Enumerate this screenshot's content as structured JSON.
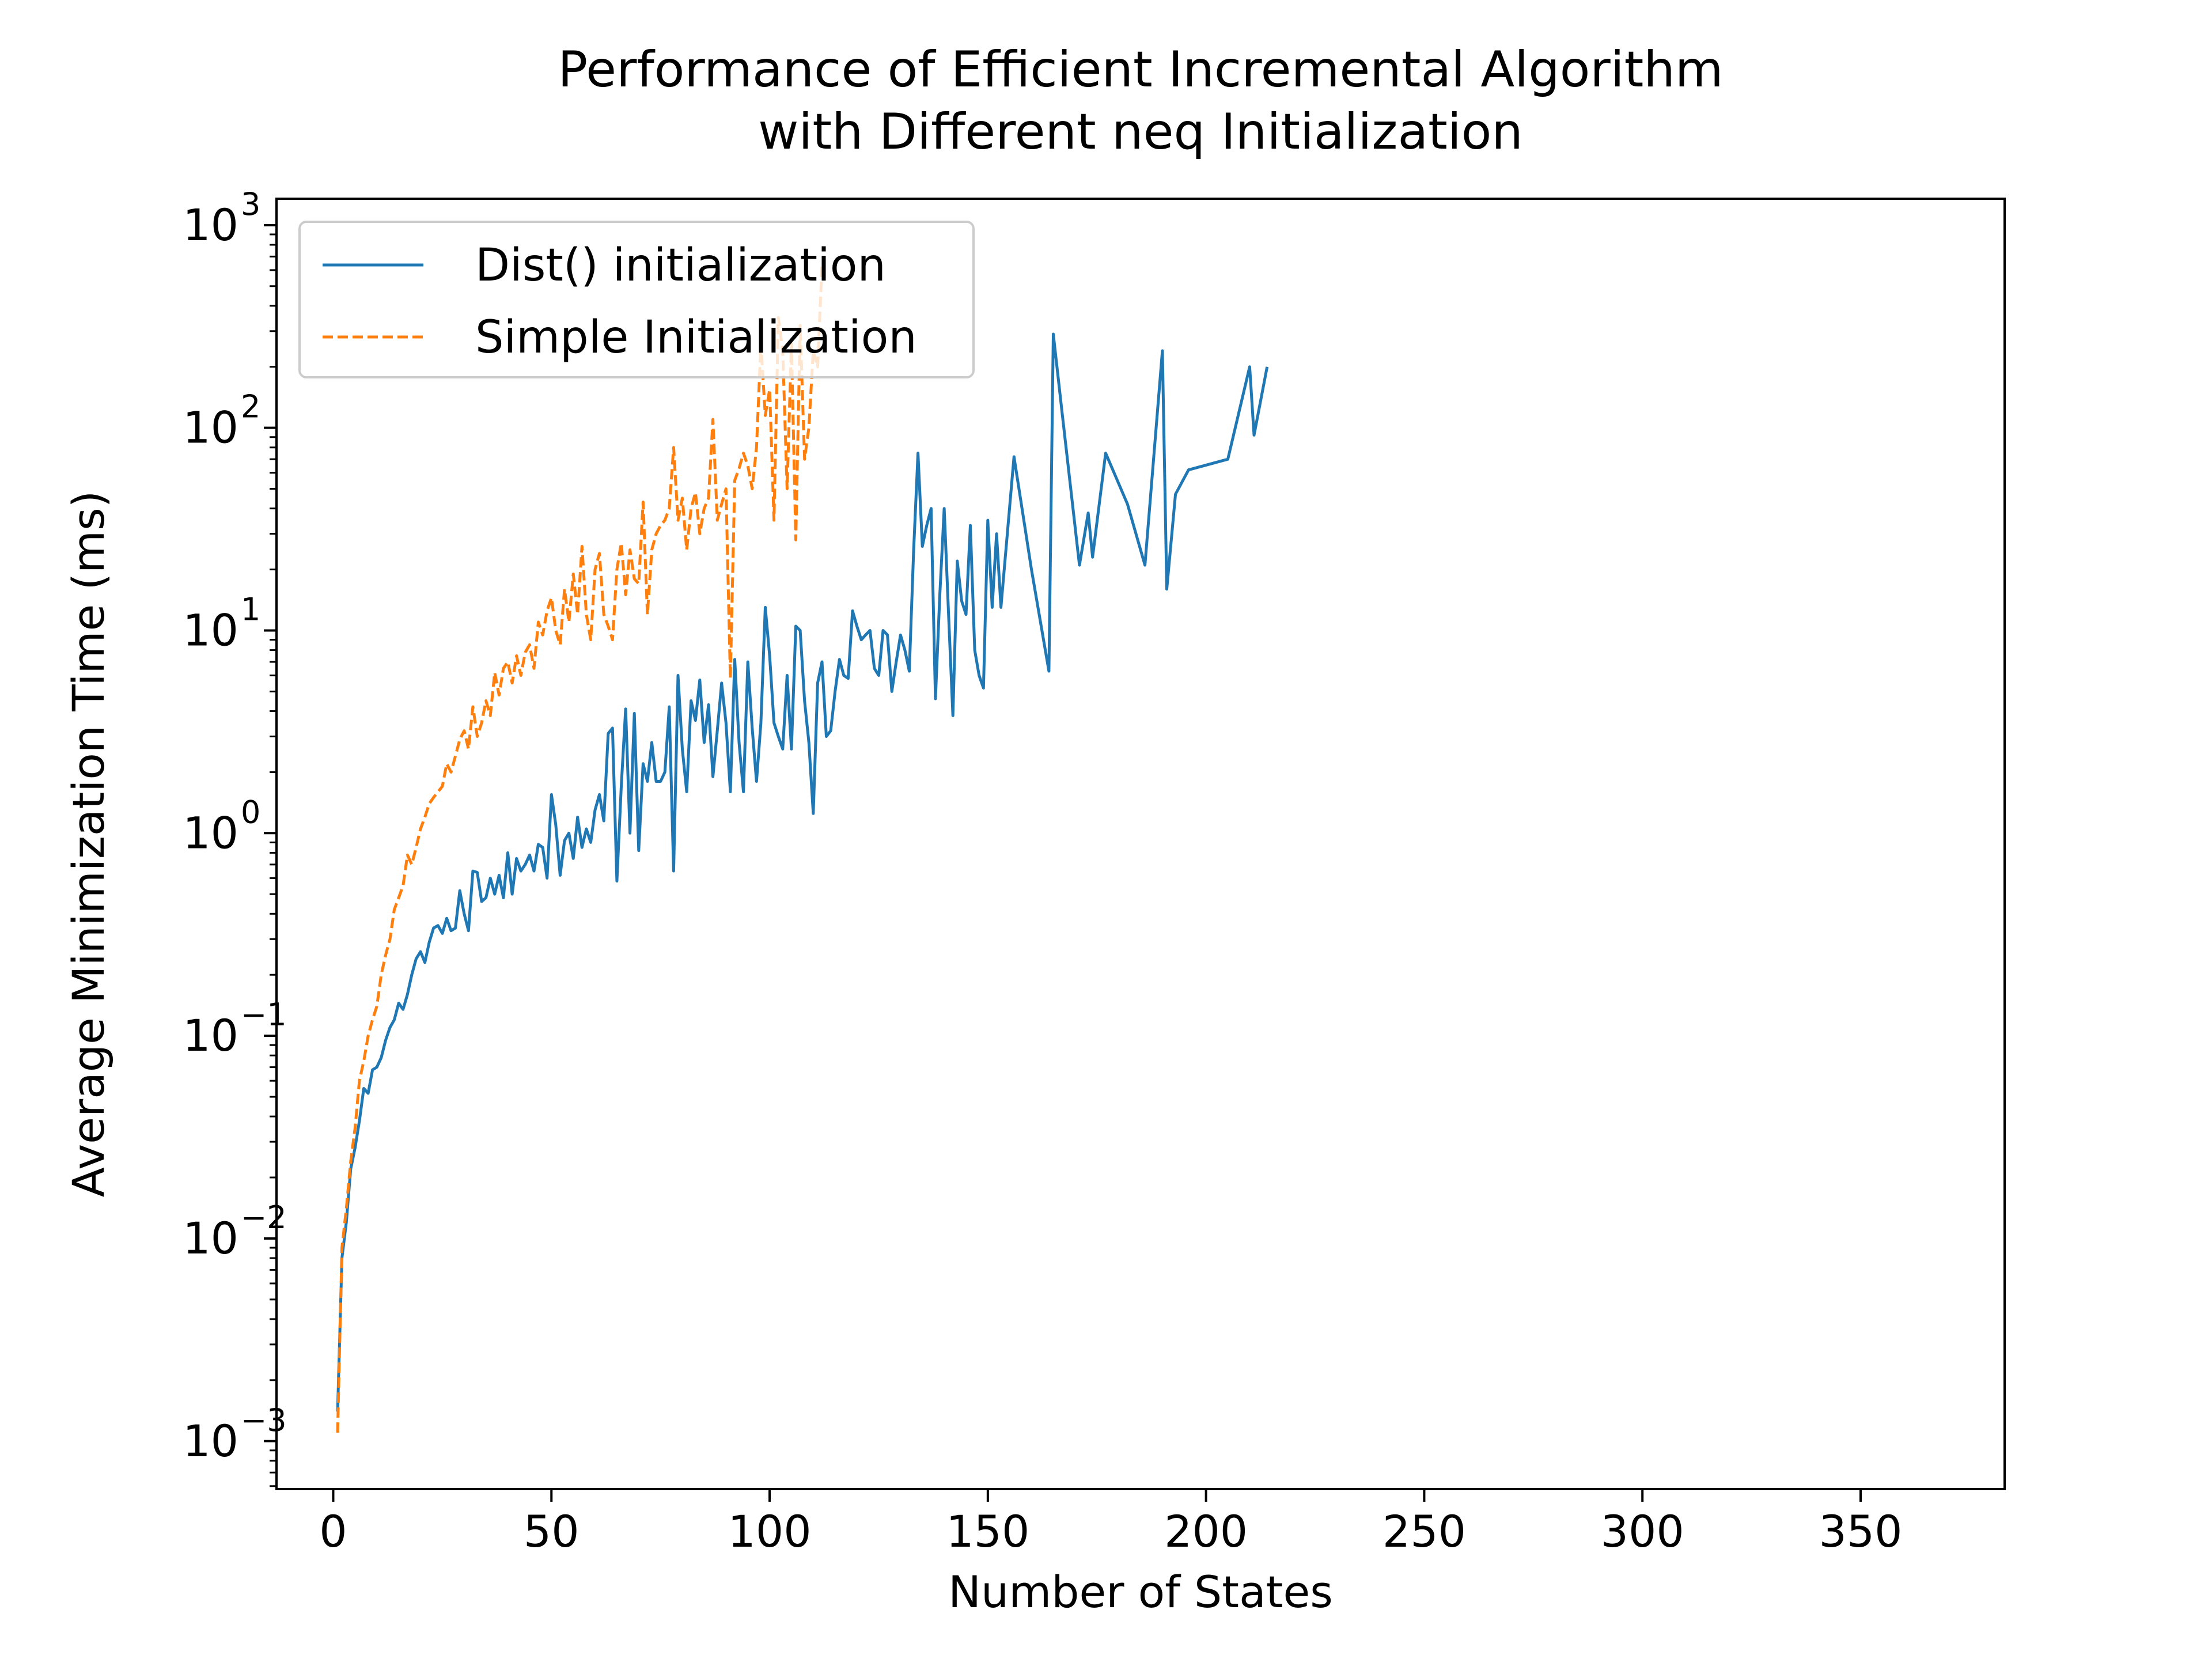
{
  "chart_data": {
    "type": "line",
    "title": [
      "Performance of Efficient Incremental Algorithm",
      "with Different neq Initialization"
    ],
    "xlabel": "Number of States",
    "ylabel": "Average Minimization Time (ms)",
    "xlim": [
      -13,
      383
    ],
    "xticks": [
      0,
      50,
      100,
      150,
      200,
      250,
      300,
      350
    ],
    "yscale": "log",
    "ylim": [
      0.00058,
      1350
    ],
    "yticks": [
      {
        "value": 0.001,
        "base": "10",
        "exp": "−3"
      },
      {
        "value": 0.01,
        "base": "10",
        "exp": "−2"
      },
      {
        "value": 0.1,
        "base": "10",
        "exp": "−1"
      },
      {
        "value": 1,
        "base": "10",
        "exp": "0"
      },
      {
        "value": 10,
        "base": "10",
        "exp": "1"
      },
      {
        "value": 100,
        "base": "10",
        "exp": "2"
      },
      {
        "value": 1000,
        "base": "10",
        "exp": "3"
      }
    ],
    "legend": {
      "position": "top-left"
    },
    "series": [
      {
        "name": "Dist() initialization",
        "color": "#1f77b4",
        "style": "solid",
        "points": [
          [
            1,
            0.0014
          ],
          [
            2,
            0.008
          ],
          [
            3,
            0.012
          ],
          [
            4,
            0.022
          ],
          [
            5,
            0.028
          ],
          [
            6,
            0.038
          ],
          [
            7,
            0.055
          ],
          [
            8,
            0.052
          ],
          [
            9,
            0.068
          ],
          [
            10,
            0.07
          ],
          [
            11,
            0.078
          ],
          [
            12,
            0.095
          ],
          [
            13,
            0.11
          ],
          [
            14,
            0.12
          ],
          [
            15,
            0.145
          ],
          [
            16,
            0.135
          ],
          [
            17,
            0.16
          ],
          [
            18,
            0.2
          ],
          [
            19,
            0.24
          ],
          [
            20,
            0.26
          ],
          [
            21,
            0.23
          ],
          [
            22,
            0.29
          ],
          [
            23,
            0.34
          ],
          [
            24,
            0.35
          ],
          [
            25,
            0.32
          ],
          [
            26,
            0.38
          ],
          [
            27,
            0.33
          ],
          [
            28,
            0.34
          ],
          [
            29,
            0.52
          ],
          [
            30,
            0.4
          ],
          [
            31,
            0.33
          ],
          [
            32,
            0.65
          ],
          [
            33,
            0.64
          ],
          [
            34,
            0.46
          ],
          [
            35,
            0.48
          ],
          [
            36,
            0.6
          ],
          [
            37,
            0.5
          ],
          [
            38,
            0.62
          ],
          [
            39,
            0.48
          ],
          [
            40,
            0.8
          ],
          [
            41,
            0.5
          ],
          [
            42,
            0.75
          ],
          [
            43,
            0.65
          ],
          [
            44,
            0.7
          ],
          [
            45,
            0.78
          ],
          [
            46,
            0.65
          ],
          [
            47,
            0.88
          ],
          [
            48,
            0.85
          ],
          [
            49,
            0.6
          ],
          [
            50,
            1.55
          ],
          [
            51,
            1.1
          ],
          [
            52,
            0.62
          ],
          [
            53,
            0.92
          ],
          [
            54,
            1.0
          ],
          [
            55,
            0.75
          ],
          [
            56,
            1.2
          ],
          [
            57,
            0.85
          ],
          [
            58,
            1.05
          ],
          [
            59,
            0.9
          ],
          [
            60,
            1.3
          ],
          [
            61,
            1.55
          ],
          [
            62,
            1.15
          ],
          [
            63,
            3.1
          ],
          [
            64,
            3.3
          ],
          [
            65,
            0.58
          ],
          [
            66,
            1.7
          ],
          [
            67,
            4.1
          ],
          [
            68,
            1.0
          ],
          [
            69,
            3.9
          ],
          [
            70,
            0.82
          ],
          [
            71,
            2.2
          ],
          [
            72,
            1.8
          ],
          [
            73,
            2.8
          ],
          [
            74,
            1.8
          ],
          [
            75,
            1.8
          ],
          [
            76,
            2.0
          ],
          [
            77,
            4.2
          ],
          [
            78,
            0.65
          ],
          [
            79,
            6.0
          ],
          [
            80,
            2.6
          ],
          [
            81,
            1.6
          ],
          [
            82,
            4.5
          ],
          [
            83,
            3.6
          ],
          [
            84,
            5.7
          ],
          [
            85,
            2.8
          ],
          [
            86,
            4.3
          ],
          [
            87,
            1.9
          ],
          [
            88,
            3.2
          ],
          [
            89,
            5.5
          ],
          [
            90,
            3.5
          ],
          [
            91,
            1.6
          ],
          [
            92,
            7.2
          ],
          [
            93,
            2.8
          ],
          [
            94,
            1.6
          ],
          [
            95,
            7.0
          ],
          [
            96,
            3.3
          ],
          [
            97,
            1.8
          ],
          [
            98,
            3.5
          ],
          [
            99,
            13.0
          ],
          [
            100,
            7.5
          ],
          [
            101,
            3.5
          ],
          [
            102,
            3.0
          ],
          [
            103,
            2.6
          ],
          [
            104,
            6.0
          ],
          [
            105,
            2.6
          ],
          [
            106,
            10.5
          ],
          [
            107,
            10.0
          ],
          [
            108,
            4.5
          ],
          [
            109,
            2.8
          ],
          [
            110,
            1.25
          ],
          [
            111,
            5.5
          ],
          [
            112,
            7.0
          ],
          [
            113,
            3.0
          ],
          [
            114,
            3.2
          ],
          [
            115,
            5.0
          ],
          [
            116,
            7.2
          ],
          [
            117,
            6.0
          ],
          [
            118,
            5.8
          ],
          [
            119,
            12.5
          ],
          [
            120,
            10.5
          ],
          [
            121,
            9.0
          ],
          [
            122,
            9.5
          ],
          [
            123,
            10.0
          ],
          [
            124,
            6.5
          ],
          [
            125,
            6.0
          ],
          [
            126,
            10.0
          ],
          [
            127,
            9.5
          ],
          [
            128,
            5.0
          ],
          [
            129,
            7.0
          ],
          [
            130,
            9.5
          ],
          [
            131,
            8.0
          ],
          [
            132,
            6.3
          ],
          [
            133,
            25.0
          ],
          [
            134,
            75.0
          ],
          [
            135,
            26.0
          ],
          [
            136,
            33.0
          ],
          [
            137,
            40.0
          ],
          [
            138,
            4.6
          ],
          [
            139,
            15.0
          ],
          [
            140,
            40.0
          ],
          [
            141,
            12.0
          ],
          [
            142,
            3.8
          ],
          [
            143,
            22.0
          ],
          [
            144,
            14.0
          ],
          [
            145,
            12.0
          ],
          [
            146,
            33.0
          ],
          [
            147,
            8.0
          ],
          [
            148,
            6.0
          ],
          [
            149,
            5.2
          ],
          [
            150,
            35.0
          ],
          [
            151,
            13.0
          ],
          [
            152,
            30.0
          ],
          [
            153,
            13.0
          ],
          [
            156,
            72.0
          ],
          [
            160,
            20.0
          ],
          [
            164,
            6.3
          ],
          [
            165,
            290.0
          ],
          [
            167,
            120.0
          ],
          [
            171,
            21.0
          ],
          [
            173,
            38.0
          ],
          [
            174,
            23.0
          ],
          [
            177,
            75.0
          ],
          [
            182,
            42.0
          ],
          [
            186,
            21.0
          ],
          [
            190,
            240.0
          ],
          [
            191,
            16.0
          ],
          [
            193,
            47.0
          ],
          [
            196,
            62.0
          ],
          [
            205,
            70.0
          ],
          [
            210,
            200.0
          ],
          [
            211,
            92.0
          ],
          [
            214,
            200.0
          ]
        ]
      },
      {
        "name": "Simple Initialization",
        "color": "#ff7f0e",
        "style": "dashed",
        "points": [
          [
            1,
            0.0011
          ],
          [
            2,
            0.009
          ],
          [
            3,
            0.014
          ],
          [
            4,
            0.024
          ],
          [
            5,
            0.035
          ],
          [
            6,
            0.06
          ],
          [
            7,
            0.075
          ],
          [
            8,
            0.1
          ],
          [
            9,
            0.12
          ],
          [
            10,
            0.14
          ],
          [
            11,
            0.2
          ],
          [
            12,
            0.25
          ],
          [
            13,
            0.3
          ],
          [
            14,
            0.42
          ],
          [
            15,
            0.48
          ],
          [
            16,
            0.55
          ],
          [
            17,
            0.78
          ],
          [
            18,
            0.7
          ],
          [
            19,
            0.85
          ],
          [
            20,
            1.05
          ],
          [
            21,
            1.2
          ],
          [
            22,
            1.4
          ],
          [
            23,
            1.5
          ],
          [
            24,
            1.6
          ],
          [
            25,
            1.7
          ],
          [
            26,
            2.2
          ],
          [
            27,
            2.0
          ],
          [
            28,
            2.4
          ],
          [
            29,
            2.9
          ],
          [
            30,
            3.2
          ],
          [
            31,
            2.6
          ],
          [
            32,
            4.2
          ],
          [
            33,
            3.0
          ],
          [
            34,
            3.5
          ],
          [
            35,
            4.5
          ],
          [
            36,
            3.8
          ],
          [
            37,
            6.2
          ],
          [
            38,
            4.8
          ],
          [
            39,
            6.5
          ],
          [
            40,
            7.0
          ],
          [
            41,
            5.5
          ],
          [
            42,
            7.5
          ],
          [
            43,
            6.0
          ],
          [
            44,
            7.8
          ],
          [
            45,
            8.5
          ],
          [
            46,
            6.5
          ],
          [
            47,
            11.0
          ],
          [
            48,
            9.5
          ],
          [
            49,
            12.5
          ],
          [
            50,
            14.5
          ],
          [
            51,
            10.0
          ],
          [
            52,
            8.5
          ],
          [
            53,
            16.0
          ],
          [
            54,
            11.0
          ],
          [
            55,
            19.0
          ],
          [
            56,
            12.0
          ],
          [
            57,
            26.0
          ],
          [
            58,
            12.0
          ],
          [
            59,
            9.0
          ],
          [
            60,
            20.0
          ],
          [
            61,
            24.0
          ],
          [
            62,
            12.0
          ],
          [
            63,
            10.5
          ],
          [
            64,
            9.0
          ],
          [
            65,
            20.0
          ],
          [
            66,
            27.0
          ],
          [
            67,
            15.0
          ],
          [
            68,
            25.0
          ],
          [
            69,
            18.0
          ],
          [
            70,
            17.0
          ],
          [
            71,
            43.0
          ],
          [
            72,
            12.0
          ],
          [
            73,
            25.0
          ],
          [
            74,
            30.0
          ],
          [
            75,
            33.0
          ],
          [
            76,
            35.0
          ],
          [
            77,
            40.0
          ],
          [
            78,
            80.0
          ],
          [
            79,
            35.0
          ],
          [
            80,
            45.0
          ],
          [
            81,
            25.0
          ],
          [
            82,
            40.0
          ],
          [
            83,
            48.0
          ],
          [
            84,
            30.0
          ],
          [
            85,
            40.0
          ],
          [
            86,
            45.0
          ],
          [
            87,
            110.0
          ],
          [
            88,
            35.0
          ],
          [
            89,
            42.0
          ],
          [
            90,
            50.0
          ],
          [
            91,
            5.8
          ],
          [
            92,
            55.0
          ],
          [
            93,
            63.0
          ],
          [
            94,
            75.0
          ],
          [
            95,
            65.0
          ],
          [
            96,
            50.0
          ],
          [
            97,
            80.0
          ],
          [
            98,
            260.0
          ],
          [
            99,
            115.0
          ],
          [
            100,
            155.0
          ],
          [
            101,
            35.0
          ],
          [
            102,
            350.0
          ],
          [
            103,
            240.0
          ],
          [
            104,
            50.0
          ],
          [
            105,
            260.0
          ],
          [
            106,
            28.0
          ],
          [
            107,
            320.0
          ],
          [
            108,
            70.0
          ],
          [
            109,
            100.0
          ],
          [
            110,
            240.0
          ],
          [
            111,
            200.0
          ],
          [
            112,
            640.0
          ]
        ]
      }
    ]
  }
}
